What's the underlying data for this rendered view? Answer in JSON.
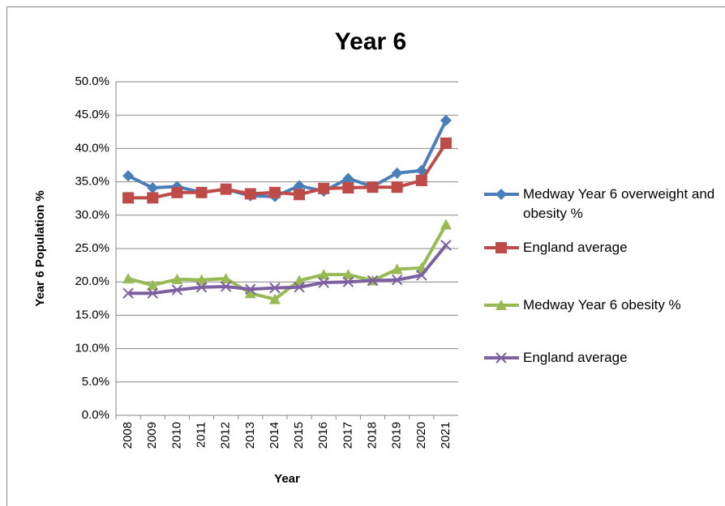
{
  "chart_data": {
    "type": "line",
    "title": "Year 6",
    "x_label": "Year",
    "y_label": "Year 6 Population %",
    "categories": [
      "2008",
      "2009",
      "2010",
      "2011",
      "2012",
      "2013",
      "2014",
      "2015",
      "2016",
      "2017",
      "2018",
      "2019",
      "2020",
      "2021"
    ],
    "series": [
      {
        "name": "Medway Year 6 overweight and obesity %",
        "color": "#4a7ebb",
        "marker": "diamond",
        "values": [
          35.9,
          34.1,
          34.3,
          33.4,
          33.9,
          32.9,
          32.8,
          34.4,
          33.6,
          35.5,
          34.3,
          36.3,
          36.7,
          44.2
        ]
      },
      {
        "name": "England average",
        "color": "#be4b48",
        "marker": "square",
        "values": [
          32.6,
          32.6,
          33.4,
          33.4,
          33.9,
          33.2,
          33.4,
          33.1,
          34.0,
          34.1,
          34.2,
          34.2,
          35.2,
          40.8
        ]
      },
      {
        "name": "Medway Year 6 obesity %",
        "color": "#98b954",
        "marker": "triangle",
        "values": [
          20.5,
          19.5,
          20.4,
          20.3,
          20.5,
          18.3,
          17.4,
          20.2,
          21.1,
          21.1,
          20.2,
          21.9,
          22.1,
          28.6
        ]
      },
      {
        "name": "England average",
        "color": "#7d60a0",
        "marker": "x",
        "values": [
          18.3,
          18.3,
          18.8,
          19.2,
          19.3,
          18.9,
          19.1,
          19.2,
          19.9,
          20.0,
          20.2,
          20.3,
          21.0,
          25.5
        ]
      }
    ],
    "ylim": [
      0,
      50
    ],
    "yticks": [
      {
        "value": 0,
        "label": "0.0%"
      },
      {
        "value": 5,
        "label": "5.0%"
      },
      {
        "value": 10,
        "label": "10.0%"
      },
      {
        "value": 15,
        "label": "15.0%"
      },
      {
        "value": 20,
        "label": "20.0%"
      },
      {
        "value": 25,
        "label": "25.0%"
      },
      {
        "value": 30,
        "label": "30.0%"
      },
      {
        "value": 35,
        "label": "35.0%"
      },
      {
        "value": 40,
        "label": "40.0%"
      },
      {
        "value": 45,
        "label": "45.0%"
      },
      {
        "value": 50,
        "label": "50.0%"
      }
    ],
    "grid": true,
    "legend": "right"
  }
}
